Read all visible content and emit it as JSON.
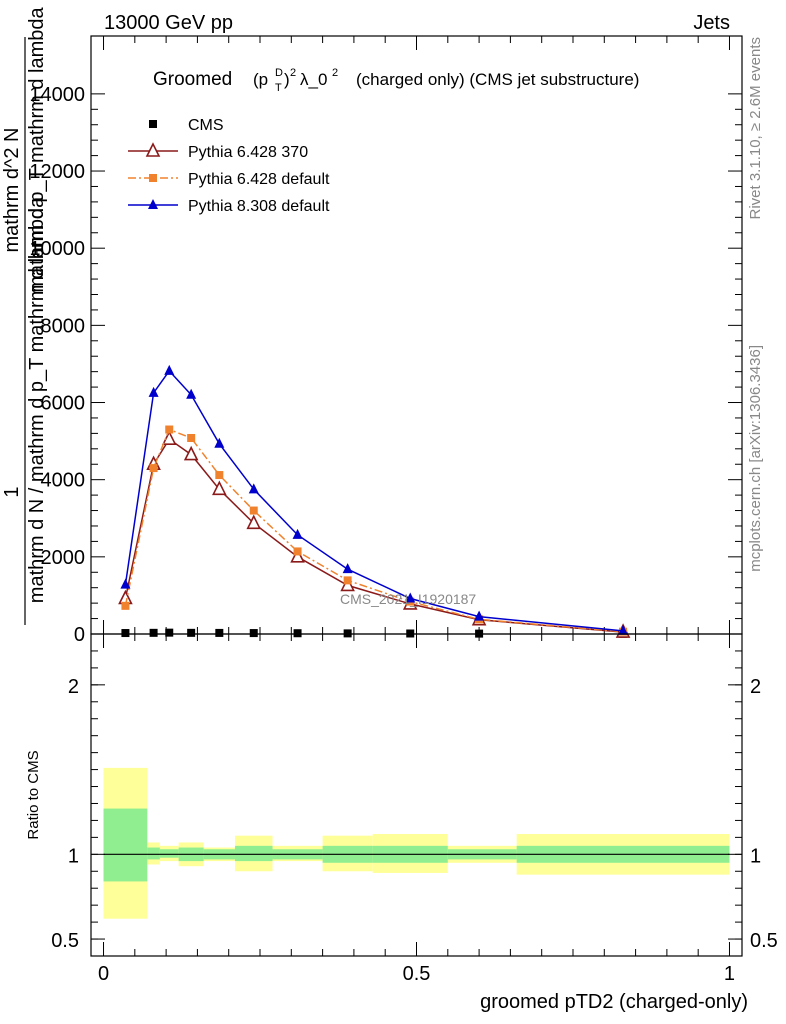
{
  "header": {
    "energy_label": "13000 GeV pp",
    "process_label": "Jets",
    "side_label_top": "Rivet 3.1.10, ≥ 2.6M events",
    "side_label_bottom": "mcplots.cern.ch [arXiv:1306.3436]",
    "watermark": "CMS_2021_I1920187"
  },
  "chart_data": [
    {
      "type": "line",
      "title_main": "Groomed",
      "title_formula": "(p_T^D)^2 λ_0^2",
      "title_suffix": "(charged only) (CMS jet substructure)",
      "ylabel_lines": [
        "1",
        "mathrm d N / mathrm d p_T mathrm d lambda",
        "mathrm d^2 N",
        "mathrm d p_T mathrm d lambda"
      ],
      "ylim": [
        0,
        15500
      ],
      "yticks": [
        0,
        2000,
        4000,
        6000,
        8000,
        10000,
        12000,
        14000
      ],
      "ytick_labels": [
        "0",
        "2000",
        "4000",
        "6000",
        "8000",
        "10000",
        "12000",
        "14000"
      ],
      "xlim": [
        -0.02,
        1.02
      ],
      "x": [
        0.035,
        0.08,
        0.105,
        0.14,
        0.185,
        0.24,
        0.31,
        0.39,
        0.49,
        0.6,
        0.83
      ],
      "bin_edges": [
        0,
        0.07,
        0.09,
        0.12,
        0.16,
        0.21,
        0.27,
        0.35,
        0.43,
        0.55,
        0.66,
        1.0
      ],
      "legend_position": "top-left",
      "series": [
        {
          "name": "CMS",
          "color": "#000000",
          "marker": "square",
          "values": [
            25,
            30,
            35,
            30,
            28,
            24,
            20,
            16,
            13,
            10,
            5
          ]
        },
        {
          "name": "Pythia 6.428 370",
          "color": "#8b1a1a",
          "marker": "open-triangle",
          "dash": "solid",
          "values": [
            920,
            4400,
            5050,
            4650,
            3750,
            2870,
            2000,
            1260,
            780,
            370,
            50
          ]
        },
        {
          "name": "Pythia 6.428 default",
          "color": "#f0822d",
          "marker": "square",
          "dash": "dashdot",
          "values": [
            730,
            4300,
            5300,
            5080,
            4120,
            3200,
            2140,
            1390,
            840,
            380,
            60
          ]
        },
        {
          "name": "Pythia 8.308 default",
          "color": "#0000cc",
          "marker": "filled-triangle",
          "dash": "solid",
          "values": [
            1280,
            6250,
            6820,
            6200,
            4930,
            3750,
            2570,
            1680,
            920,
            450,
            80
          ]
        }
      ]
    },
    {
      "type": "area",
      "ylabel": "Ratio to CMS",
      "xlabel": "groomed pTD2 (charged-only)",
      "ylim": [
        0.4,
        2.3
      ],
      "yticks": [
        0.5,
        1,
        2
      ],
      "ytick_labels": [
        "0.5",
        "1",
        "2"
      ],
      "xticks": [
        0,
        0.5,
        1
      ],
      "xtick_labels": [
        "0",
        "0.5",
        "1"
      ],
      "bin_edges": [
        0,
        0.07,
        0.09,
        0.12,
        0.16,
        0.21,
        0.27,
        0.35,
        0.43,
        0.55,
        0.66,
        1.0
      ],
      "stat_band": {
        "color": "#90ee90",
        "low": [
          0.84,
          0.97,
          0.98,
          0.96,
          0.97,
          0.96,
          0.97,
          0.95,
          0.95,
          0.97,
          0.95
        ],
        "high": [
          1.27,
          1.04,
          1.03,
          1.04,
          1.03,
          1.05,
          1.03,
          1.05,
          1.05,
          1.03,
          1.05
        ]
      },
      "syst_band": {
        "color": "#ffff99",
        "low": [
          0.62,
          0.94,
          0.96,
          0.93,
          0.96,
          0.9,
          0.96,
          0.9,
          0.89,
          0.95,
          0.88
        ],
        "high": [
          1.51,
          1.07,
          1.05,
          1.07,
          1.04,
          1.11,
          1.05,
          1.11,
          1.12,
          1.05,
          1.12
        ]
      },
      "reference_line": 1
    }
  ]
}
